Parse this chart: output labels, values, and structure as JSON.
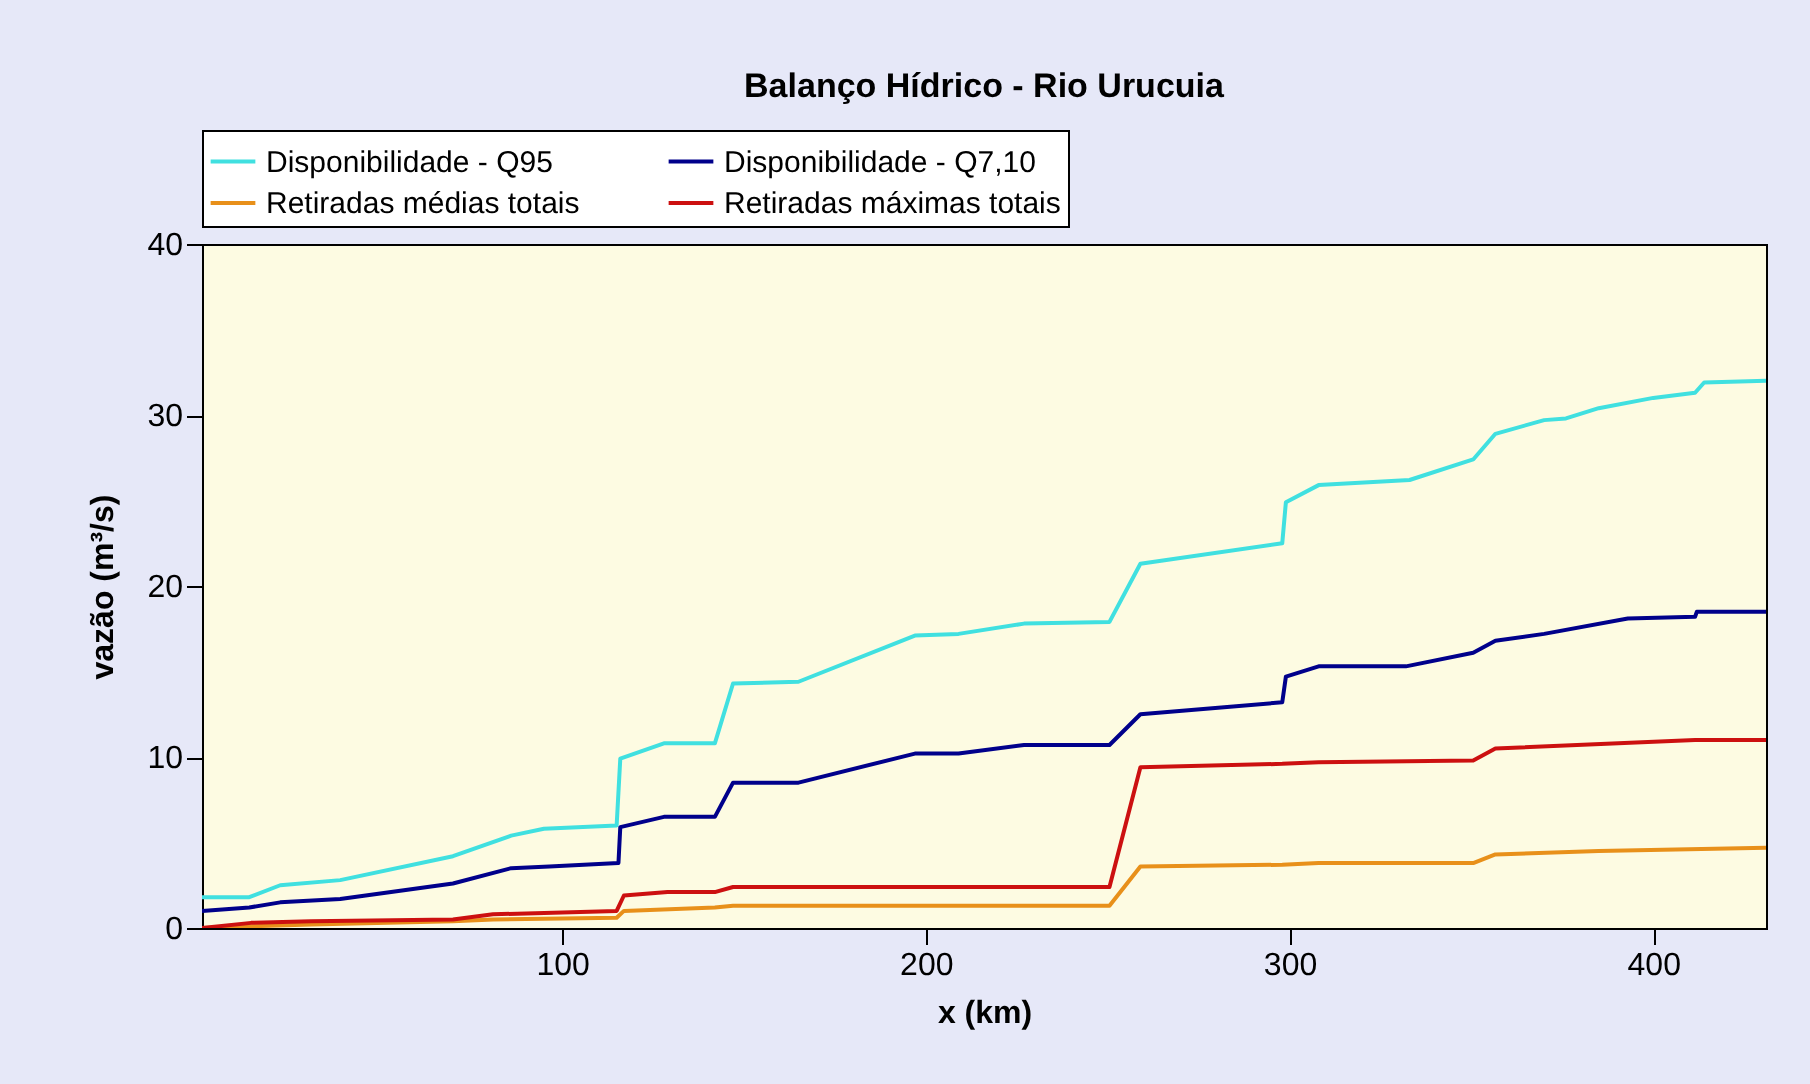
{
  "chart_data": {
    "type": "line",
    "title": "Balanço Hídrico - Rio Urucuia",
    "xlabel": "x (km)",
    "ylabel": "vazão (m³/s)",
    "xlim": [
      1,
      431
    ],
    "ylim": [
      0,
      40
    ],
    "xticks": [
      100,
      200,
      300,
      400
    ],
    "yticks": [
      0,
      10,
      20,
      30,
      40
    ],
    "grid": false,
    "legend": "top left",
    "marker": "none",
    "line_style": "solid",
    "series": [
      {
        "name": "Disponibilidade - Q95",
        "color": "#40e0e0",
        "x": [
          1,
          14,
          22.5,
          39,
          70,
          86,
          95,
          115,
          116,
          128,
          142,
          147,
          165,
          197,
          209,
          227,
          250.5,
          259,
          298,
          299,
          308,
          333,
          350.5,
          356.6,
          370,
          376,
          385,
          400,
          411.5,
          414,
          431
        ],
        "values": [
          1.8,
          1.8,
          2.5,
          2.8,
          4.2,
          5.4,
          5.8,
          6.0,
          9.9,
          10.8,
          10.8,
          14.3,
          14.4,
          17.1,
          17.2,
          17.8,
          17.9,
          21.3,
          22.5,
          24.9,
          25.9,
          26.2,
          27.4,
          28.9,
          29.7,
          29.8,
          30.4,
          31.0,
          31.3,
          31.9,
          32.0
        ]
      },
      {
        "name": "Disponibilidade - Q7,10",
        "color": "#00008b",
        "x": [
          1,
          14,
          22.5,
          39,
          70,
          86,
          96.5,
          115.5,
          116,
          128,
          142,
          147,
          165,
          197,
          209,
          227,
          250.5,
          259,
          298,
          299,
          308,
          332,
          350.5,
          356.6,
          370,
          393,
          411.5,
          412,
          431
        ],
        "values": [
          1.0,
          1.2,
          1.5,
          1.7,
          2.6,
          3.5,
          3.6,
          3.8,
          5.9,
          6.5,
          6.5,
          8.5,
          8.5,
          10.2,
          10.2,
          10.7,
          10.7,
          12.5,
          13.2,
          14.7,
          15.3,
          15.3,
          16.1,
          16.8,
          17.2,
          18.1,
          18.2,
          18.5,
          18.5
        ]
      },
      {
        "name": "Retiradas médias totais",
        "color": "#e8901a",
        "x": [
          1,
          14.5,
          31,
          70,
          81,
          115,
          117,
          142,
          147,
          250.5,
          259,
          298,
          308,
          350.5,
          356.6,
          385,
          431
        ],
        "values": [
          0,
          0.1,
          0.2,
          0.4,
          0.5,
          0.6,
          1.0,
          1.2,
          1.3,
          1.3,
          3.6,
          3.7,
          3.8,
          3.8,
          4.3,
          4.5,
          4.7
        ]
      },
      {
        "name": "Retiradas máximas totais",
        "color": "#cc1010",
        "x": [
          1,
          14.5,
          31,
          70,
          81,
          115,
          117,
          129,
          142,
          147,
          250.5,
          259,
          298,
          308,
          350.5,
          356.6,
          411.5,
          431
        ],
        "values": [
          0,
          0.3,
          0.4,
          0.5,
          0.8,
          1.0,
          1.9,
          2.1,
          2.1,
          2.4,
          2.4,
          9.4,
          9.6,
          9.7,
          9.8,
          10.5,
          11.0,
          11.0
        ]
      }
    ]
  }
}
